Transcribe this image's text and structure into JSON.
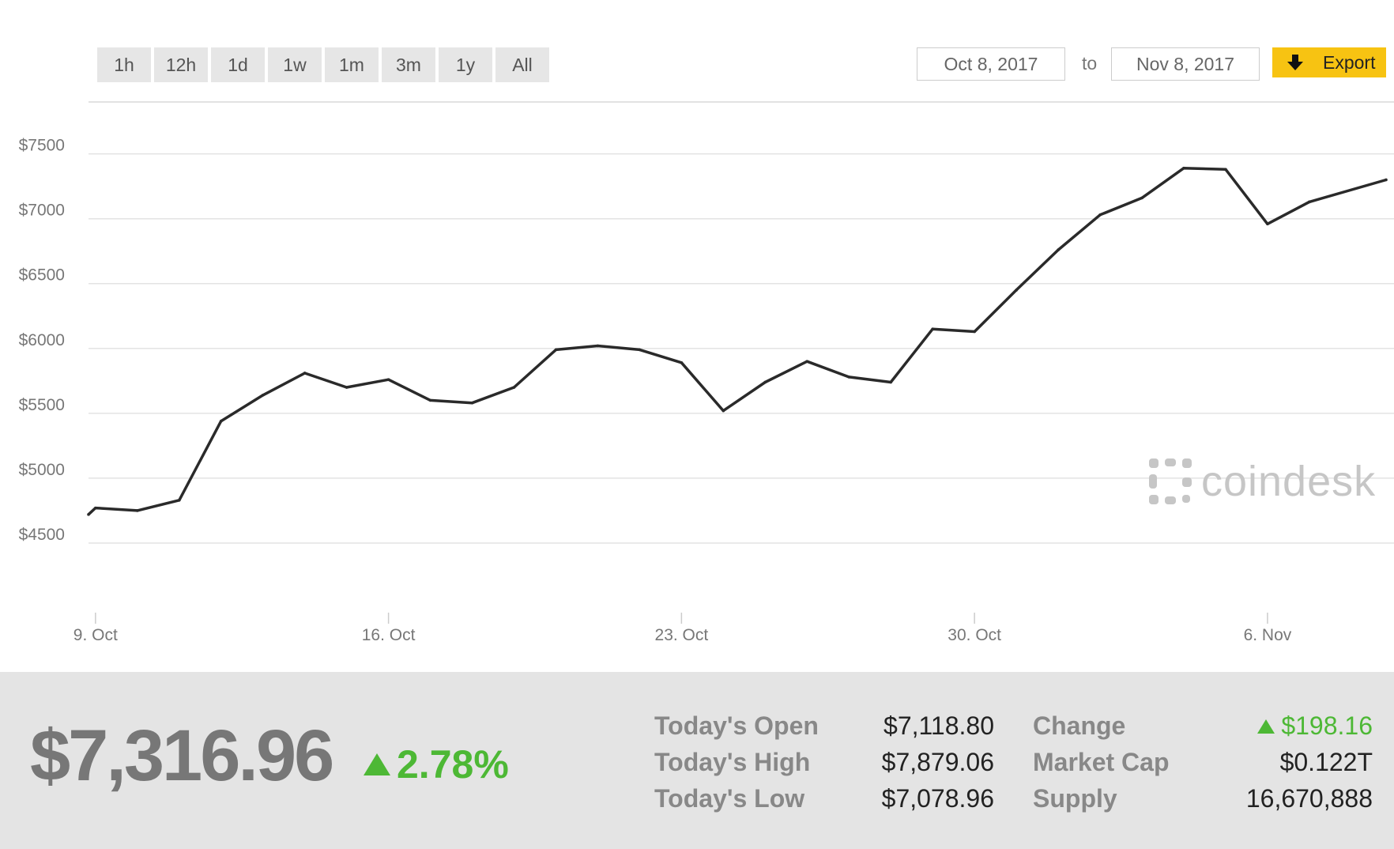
{
  "toolbar": {
    "ranges": [
      "1h",
      "12h",
      "1d",
      "1w",
      "1m",
      "3m",
      "1y",
      "All"
    ],
    "date_from": "Oct 8, 2017",
    "date_to_label": "to",
    "date_to": "Nov 8, 2017",
    "export_label": "Export"
  },
  "colors": {
    "accent": "#f7c312",
    "up": "#4db835",
    "line": "#2a2a2a",
    "stats_bg": "#e4e4e4"
  },
  "watermark": {
    "text": "coindesk"
  },
  "chart_data": {
    "type": "line",
    "title": "",
    "xlabel": "",
    "ylabel": "",
    "ylim": [
      4000,
      7900
    ],
    "y_ticks": [
      4500,
      5000,
      5500,
      6000,
      6500,
      7000,
      7500
    ],
    "y_tick_labels": [
      "$4500",
      "$5000",
      "$5500",
      "$6000",
      "$6500",
      "$7000",
      "$7500"
    ],
    "x_ticks": [
      "2017-10-09",
      "2017-10-16",
      "2017-10-23",
      "2017-10-30",
      "2017-11-06"
    ],
    "x_tick_labels": [
      "9. Oct",
      "16. Oct",
      "23. Oct",
      "30. Oct",
      "6. Nov"
    ],
    "xlim": [
      "2017-10-08T20:00",
      "2017-11-08T20:00"
    ],
    "grid": true,
    "series": [
      {
        "x": [
          "2017-10-08T20:00",
          "2017-10-09",
          "2017-10-10",
          "2017-10-11",
          "2017-10-12",
          "2017-10-13",
          "2017-10-14",
          "2017-10-15",
          "2017-10-16",
          "2017-10-17",
          "2017-10-18",
          "2017-10-19",
          "2017-10-20",
          "2017-10-21",
          "2017-10-22",
          "2017-10-23",
          "2017-10-24",
          "2017-10-25",
          "2017-10-26",
          "2017-10-27",
          "2017-10-28",
          "2017-10-29",
          "2017-10-30",
          "2017-10-31",
          "2017-11-01",
          "2017-11-02",
          "2017-11-03",
          "2017-11-04",
          "2017-11-05",
          "2017-11-06",
          "2017-11-07",
          "2017-11-08T20:00"
        ],
        "y": [
          4720,
          4770,
          4750,
          4830,
          5440,
          5640,
          5810,
          5700,
          5760,
          5600,
          5580,
          5700,
          5990,
          6020,
          5990,
          5890,
          5520,
          5740,
          5900,
          5780,
          5740,
          6150,
          6130,
          6450,
          6760,
          7030,
          7160,
          7390,
          7380,
          6960,
          7130,
          7300
        ]
      }
    ]
  },
  "stats": {
    "price": "$7,316.96",
    "change_pct": "2.78%",
    "open_label": "Today's Open",
    "open_value": "$7,118.80",
    "high_label": "Today's High",
    "high_value": "$7,879.06",
    "low_label": "Today's Low",
    "low_value": "$7,078.96",
    "change_label": "Change",
    "change_value": "$198.16",
    "cap_label": "Market Cap",
    "cap_value": "$0.122T",
    "supply_label": "Supply",
    "supply_value": "16,670,888"
  }
}
